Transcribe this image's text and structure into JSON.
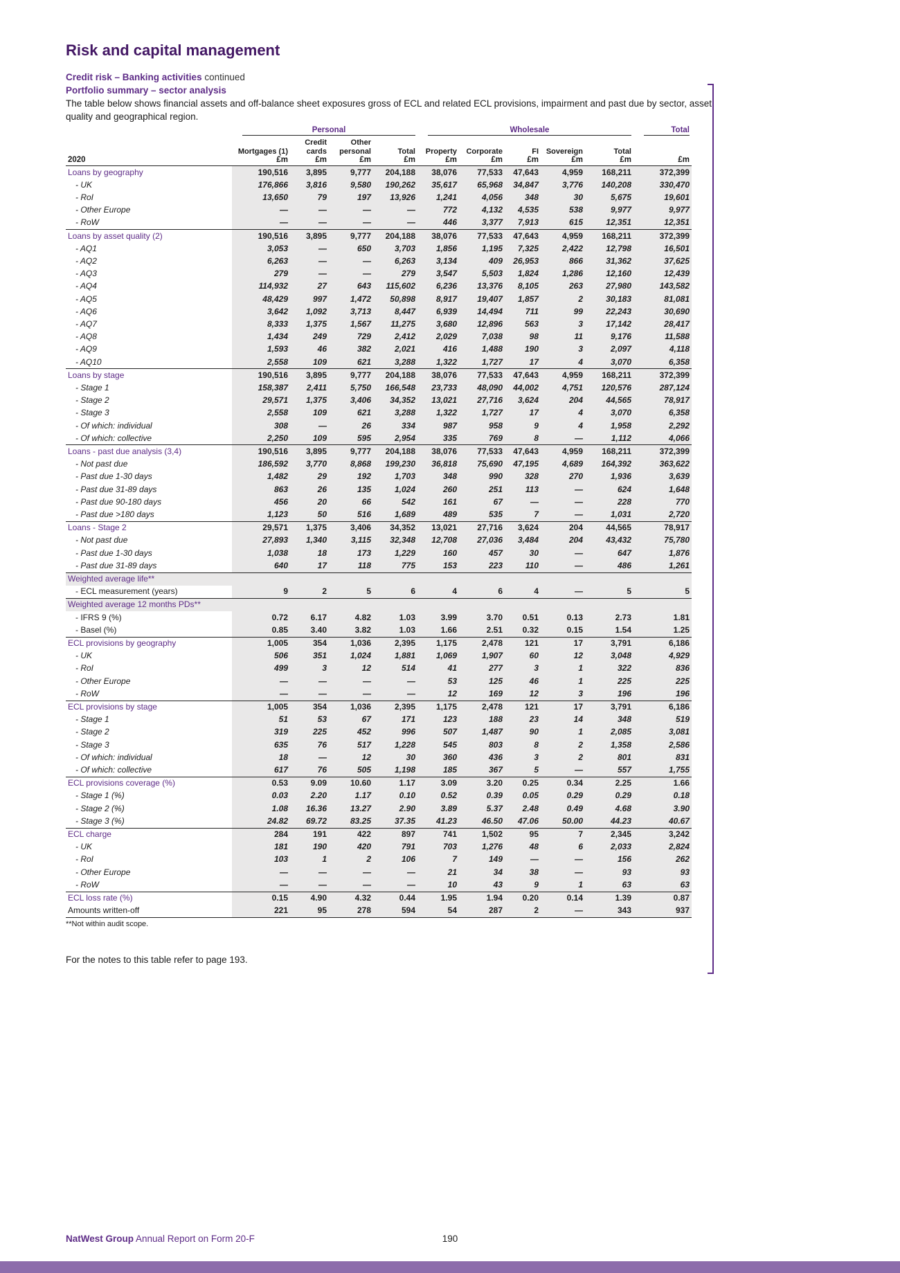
{
  "colors": {
    "purple": "#5e2c87",
    "purple_dark": "#431764",
    "footer_bar": "#8d6cab",
    "row_shade": "#e9e8e8"
  },
  "page": {
    "title": "Risk and capital management",
    "subtitle_bold": "Credit risk – Banking activities",
    "subtitle_cont": " continued",
    "section": "Portfolio summary – sector analysis",
    "intro": "The table below shows financial assets and off-balance sheet exposures gross of ECL and related ECL provisions, impairment and past due by sector, asset quality and geographical region.",
    "footnote": "**Not within audit scope.",
    "notes_ref": "For the notes to this table refer to page 193.",
    "footer_brand": "NatWest Group",
    "footer_text": " Annual Report on Form 20-F",
    "page_number": "190"
  },
  "table": {
    "year": "2020",
    "unit": "£m",
    "groups": [
      {
        "label": "Personal",
        "span": 4
      },
      {
        "label": "Wholesale",
        "span": 5
      },
      {
        "label": "Total",
        "span": 1
      }
    ],
    "columns": [
      "Mortgages (1)",
      "Credit\ncards",
      "Other\npersonal",
      "Total",
      "Property",
      "Corporate",
      "FI",
      "Sovereign",
      "Total",
      ""
    ],
    "rows": [
      {
        "type": "s",
        "label": "Loans by geography",
        "values": [
          "190,516",
          "3,895",
          "9,777",
          "204,188",
          "38,076",
          "77,533",
          "47,643",
          "4,959",
          "168,211",
          "372,399"
        ]
      },
      {
        "type": "i",
        "label": "- UK",
        "values": [
          "176,866",
          "3,816",
          "9,580",
          "190,262",
          "35,617",
          "65,968",
          "34,847",
          "3,776",
          "140,208",
          "330,470"
        ]
      },
      {
        "type": "i",
        "label": "- RoI",
        "values": [
          "13,650",
          "79",
          "197",
          "13,926",
          "1,241",
          "4,056",
          "348",
          "30",
          "5,675",
          "19,601"
        ]
      },
      {
        "type": "i",
        "label": "- Other Europe",
        "values": [
          "—",
          "—",
          "—",
          "—",
          "772",
          "4,132",
          "4,535",
          "538",
          "9,977",
          "9,977"
        ]
      },
      {
        "type": "i",
        "label": "- RoW",
        "values": [
          "—",
          "—",
          "—",
          "—",
          "446",
          "3,377",
          "7,913",
          "615",
          "12,351",
          "12,351"
        ]
      },
      {
        "type": "s",
        "label": "Loans by asset quality (2)",
        "values": [
          "190,516",
          "3,895",
          "9,777",
          "204,188",
          "38,076",
          "77,533",
          "47,643",
          "4,959",
          "168,211",
          "372,399"
        ]
      },
      {
        "type": "i",
        "label": "- AQ1",
        "values": [
          "3,053",
          "—",
          "650",
          "3,703",
          "1,856",
          "1,195",
          "7,325",
          "2,422",
          "12,798",
          "16,501"
        ]
      },
      {
        "type": "i",
        "label": "- AQ2",
        "values": [
          "6,263",
          "—",
          "—",
          "6,263",
          "3,134",
          "409",
          "26,953",
          "866",
          "31,362",
          "37,625"
        ]
      },
      {
        "type": "i",
        "label": "- AQ3",
        "values": [
          "279",
          "—",
          "—",
          "279",
          "3,547",
          "5,503",
          "1,824",
          "1,286",
          "12,160",
          "12,439"
        ]
      },
      {
        "type": "i",
        "label": "- AQ4",
        "values": [
          "114,932",
          "27",
          "643",
          "115,602",
          "6,236",
          "13,376",
          "8,105",
          "263",
          "27,980",
          "143,582"
        ]
      },
      {
        "type": "i",
        "label": "- AQ5",
        "values": [
          "48,429",
          "997",
          "1,472",
          "50,898",
          "8,917",
          "19,407",
          "1,857",
          "2",
          "30,183",
          "81,081"
        ]
      },
      {
        "type": "i",
        "label": "- AQ6",
        "values": [
          "3,642",
          "1,092",
          "3,713",
          "8,447",
          "6,939",
          "14,494",
          "711",
          "99",
          "22,243",
          "30,690"
        ]
      },
      {
        "type": "i",
        "label": "- AQ7",
        "values": [
          "8,333",
          "1,375",
          "1,567",
          "11,275",
          "3,680",
          "12,896",
          "563",
          "3",
          "17,142",
          "28,417"
        ]
      },
      {
        "type": "i",
        "label": "- AQ8",
        "values": [
          "1,434",
          "249",
          "729",
          "2,412",
          "2,029",
          "7,038",
          "98",
          "11",
          "9,176",
          "11,588"
        ]
      },
      {
        "type": "i",
        "label": "- AQ9",
        "values": [
          "1,593",
          "46",
          "382",
          "2,021",
          "416",
          "1,488",
          "190",
          "3",
          "2,097",
          "4,118"
        ]
      },
      {
        "type": "i",
        "label": "- AQ10",
        "values": [
          "2,558",
          "109",
          "621",
          "3,288",
          "1,322",
          "1,727",
          "17",
          "4",
          "3,070",
          "6,358"
        ]
      },
      {
        "type": "s",
        "label": "Loans by stage",
        "values": [
          "190,516",
          "3,895",
          "9,777",
          "204,188",
          "38,076",
          "77,533",
          "47,643",
          "4,959",
          "168,211",
          "372,399"
        ]
      },
      {
        "type": "i",
        "label": "- Stage 1",
        "values": [
          "158,387",
          "2,411",
          "5,750",
          "166,548",
          "23,733",
          "48,090",
          "44,002",
          "4,751",
          "120,576",
          "287,124"
        ]
      },
      {
        "type": "i",
        "label": "- Stage 2",
        "values": [
          "29,571",
          "1,375",
          "3,406",
          "34,352",
          "13,021",
          "27,716",
          "3,624",
          "204",
          "44,565",
          "78,917"
        ]
      },
      {
        "type": "i",
        "label": "- Stage 3",
        "values": [
          "2,558",
          "109",
          "621",
          "3,288",
          "1,322",
          "1,727",
          "17",
          "4",
          "3,070",
          "6,358"
        ]
      },
      {
        "type": "i",
        "label": "- Of which: individual",
        "values": [
          "308",
          "—",
          "26",
          "334",
          "987",
          "958",
          "9",
          "4",
          "1,958",
          "2,292"
        ]
      },
      {
        "type": "i",
        "label": "- Of which: collective",
        "values": [
          "2,250",
          "109",
          "595",
          "2,954",
          "335",
          "769",
          "8",
          "—",
          "1,112",
          "4,066"
        ]
      },
      {
        "type": "s",
        "label": "Loans - past due analysis (3,4)",
        "values": [
          "190,516",
          "3,895",
          "9,777",
          "204,188",
          "38,076",
          "77,533",
          "47,643",
          "4,959",
          "168,211",
          "372,399"
        ]
      },
      {
        "type": "i",
        "label": "- Not past due",
        "values": [
          "186,592",
          "3,770",
          "8,868",
          "199,230",
          "36,818",
          "75,690",
          "47,195",
          "4,689",
          "164,392",
          "363,622"
        ]
      },
      {
        "type": "i",
        "label": "- Past due 1-30 days",
        "values": [
          "1,482",
          "29",
          "192",
          "1,703",
          "348",
          "990",
          "328",
          "270",
          "1,936",
          "3,639"
        ]
      },
      {
        "type": "i",
        "label": "- Past due 31-89 days",
        "values": [
          "863",
          "26",
          "135",
          "1,024",
          "260",
          "251",
          "113",
          "—",
          "624",
          "1,648"
        ]
      },
      {
        "type": "i",
        "label": "- Past due 90-180 days",
        "values": [
          "456",
          "20",
          "66",
          "542",
          "161",
          "67",
          "—",
          "—",
          "228",
          "770"
        ]
      },
      {
        "type": "i",
        "label": "- Past due >180 days",
        "values": [
          "1,123",
          "50",
          "516",
          "1,689",
          "489",
          "535",
          "7",
          "—",
          "1,031",
          "2,720"
        ]
      },
      {
        "type": "s",
        "label": "Loans - Stage 2",
        "values": [
          "29,571",
          "1,375",
          "3,406",
          "34,352",
          "13,021",
          "27,716",
          "3,624",
          "204",
          "44,565",
          "78,917"
        ]
      },
      {
        "type": "i",
        "label": "- Not past due",
        "values": [
          "27,893",
          "1,340",
          "3,115",
          "32,348",
          "12,708",
          "27,036",
          "3,484",
          "204",
          "43,432",
          "75,780"
        ]
      },
      {
        "type": "i",
        "label": "- Past due 1-30 days",
        "values": [
          "1,038",
          "18",
          "173",
          "1,229",
          "160",
          "457",
          "30",
          "—",
          "647",
          "1,876"
        ]
      },
      {
        "type": "i",
        "label": "- Past due 31-89 days",
        "values": [
          "640",
          "17",
          "118",
          "775",
          "153",
          "223",
          "110",
          "—",
          "486",
          "1,261"
        ]
      },
      {
        "type": "b",
        "label": "Weighted average life**"
      },
      {
        "type": "p",
        "label": "- ECL measurement (years)",
        "values": [
          "9",
          "2",
          "5",
          "6",
          "4",
          "6",
          "4",
          "—",
          "5",
          "5"
        ]
      },
      {
        "type": "b",
        "label": "Weighted average 12 months PDs**"
      },
      {
        "type": "p",
        "label": "- IFRS 9 (%)",
        "values": [
          "0.72",
          "6.17",
          "4.82",
          "1.03",
          "3.99",
          "3.70",
          "0.51",
          "0.13",
          "2.73",
          "1.81"
        ]
      },
      {
        "type": "p",
        "label": "- Basel (%)",
        "values": [
          "0.85",
          "3.40",
          "3.82",
          "1.03",
          "1.66",
          "2.51",
          "0.32",
          "0.15",
          "1.54",
          "1.25"
        ]
      },
      {
        "type": "s",
        "label": "ECL provisions by geography",
        "values": [
          "1,005",
          "354",
          "1,036",
          "2,395",
          "1,175",
          "2,478",
          "121",
          "17",
          "3,791",
          "6,186"
        ]
      },
      {
        "type": "i",
        "label": "- UK",
        "values": [
          "506",
          "351",
          "1,024",
          "1,881",
          "1,069",
          "1,907",
          "60",
          "12",
          "3,048",
          "4,929"
        ]
      },
      {
        "type": "i",
        "label": "- RoI",
        "values": [
          "499",
          "3",
          "12",
          "514",
          "41",
          "277",
          "3",
          "1",
          "322",
          "836"
        ]
      },
      {
        "type": "i",
        "label": "- Other Europe",
        "values": [
          "—",
          "—",
          "—",
          "—",
          "53",
          "125",
          "46",
          "1",
          "225",
          "225"
        ]
      },
      {
        "type": "i",
        "label": "- RoW",
        "values": [
          "—",
          "—",
          "—",
          "—",
          "12",
          "169",
          "12",
          "3",
          "196",
          "196"
        ]
      },
      {
        "type": "s",
        "label": "ECL provisions by stage",
        "values": [
          "1,005",
          "354",
          "1,036",
          "2,395",
          "1,175",
          "2,478",
          "121",
          "17",
          "3,791",
          "6,186"
        ]
      },
      {
        "type": "i",
        "label": "- Stage 1",
        "values": [
          "51",
          "53",
          "67",
          "171",
          "123",
          "188",
          "23",
          "14",
          "348",
          "519"
        ]
      },
      {
        "type": "i",
        "label": "- Stage 2",
        "values": [
          "319",
          "225",
          "452",
          "996",
          "507",
          "1,487",
          "90",
          "1",
          "2,085",
          "3,081"
        ]
      },
      {
        "type": "i",
        "label": "- Stage 3",
        "values": [
          "635",
          "76",
          "517",
          "1,228",
          "545",
          "803",
          "8",
          "2",
          "1,358",
          "2,586"
        ]
      },
      {
        "type": "i",
        "label": "- Of which: individual",
        "values": [
          "18",
          "—",
          "12",
          "30",
          "360",
          "436",
          "3",
          "2",
          "801",
          "831"
        ]
      },
      {
        "type": "i",
        "label": "- Of which: collective",
        "values": [
          "617",
          "76",
          "505",
          "1,198",
          "185",
          "367",
          "5",
          "—",
          "557",
          "1,755"
        ]
      },
      {
        "type": "s",
        "label": "ECL provisions coverage (%)",
        "values": [
          "0.53",
          "9.09",
          "10.60",
          "1.17",
          "3.09",
          "3.20",
          "0.25",
          "0.34",
          "2.25",
          "1.66"
        ]
      },
      {
        "type": "i",
        "label": "- Stage 1 (%)",
        "values": [
          "0.03",
          "2.20",
          "1.17",
          "0.10",
          "0.52",
          "0.39",
          "0.05",
          "0.29",
          "0.29",
          "0.18"
        ]
      },
      {
        "type": "i",
        "label": "- Stage 2 (%)",
        "values": [
          "1.08",
          "16.36",
          "13.27",
          "2.90",
          "3.89",
          "5.37",
          "2.48",
          "0.49",
          "4.68",
          "3.90"
        ]
      },
      {
        "type": "i",
        "label": "- Stage 3 (%)",
        "values": [
          "24.82",
          "69.72",
          "83.25",
          "37.35",
          "41.23",
          "46.50",
          "47.06",
          "50.00",
          "44.23",
          "40.67"
        ]
      },
      {
        "type": "s",
        "label": "ECL charge",
        "values": [
          "284",
          "191",
          "422",
          "897",
          "741",
          "1,502",
          "95",
          "7",
          "2,345",
          "3,242"
        ]
      },
      {
        "type": "i",
        "label": "- UK",
        "values": [
          "181",
          "190",
          "420",
          "791",
          "703",
          "1,276",
          "48",
          "6",
          "2,033",
          "2,824"
        ]
      },
      {
        "type": "i",
        "label": "- RoI",
        "values": [
          "103",
          "1",
          "2",
          "106",
          "7",
          "149",
          "—",
          "—",
          "156",
          "262"
        ]
      },
      {
        "type": "i",
        "label": "- Other Europe",
        "values": [
          "—",
          "—",
          "—",
          "—",
          "21",
          "34",
          "38",
          "—",
          "93",
          "93"
        ]
      },
      {
        "type": "i",
        "label": "- RoW",
        "values": [
          "—",
          "—",
          "—",
          "—",
          "10",
          "43",
          "9",
          "1",
          "63",
          "63"
        ]
      },
      {
        "type": "s",
        "label": "ECL loss rate (%)",
        "values": [
          "0.15",
          "4.90",
          "4.32",
          "0.44",
          "1.95",
          "1.94",
          "0.20",
          "0.14",
          "1.39",
          "0.87"
        ]
      },
      {
        "type": "pl",
        "label": "Amounts written-off",
        "values": [
          "221",
          "95",
          "278",
          "594",
          "54",
          "287",
          "2",
          "—",
          "343",
          "937"
        ]
      }
    ]
  }
}
